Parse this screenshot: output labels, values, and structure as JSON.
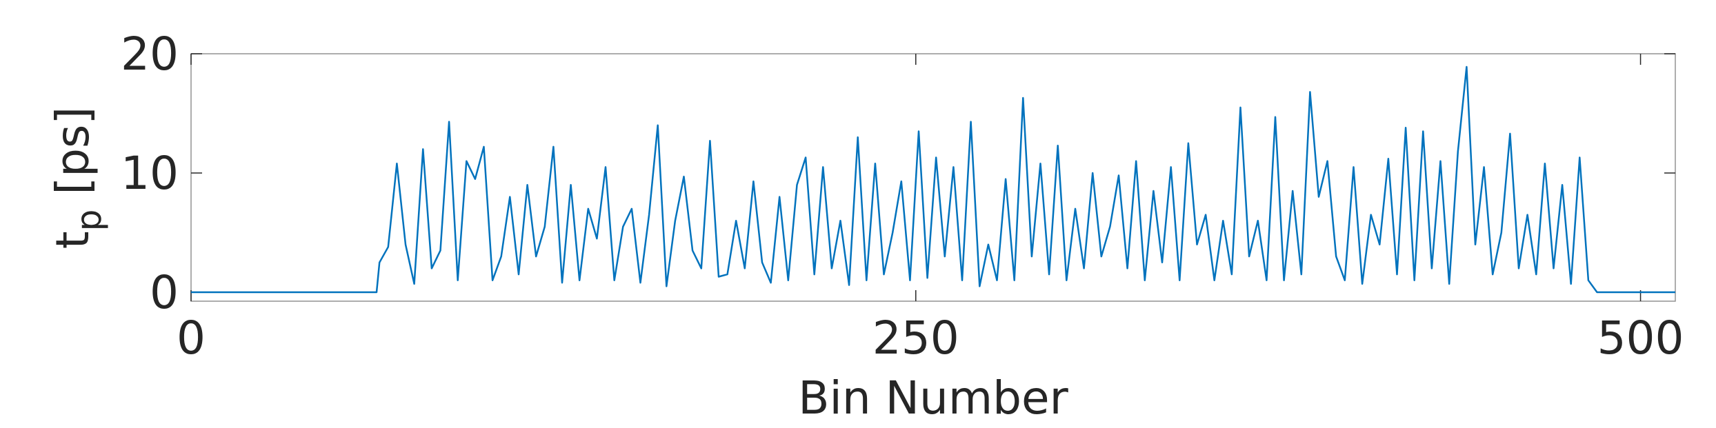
{
  "chart_data": {
    "type": "line",
    "xlabel": "Bin Number",
    "ylabel": [
      "t",
      "p",
      " [ps]"
    ],
    "xlim": [
      0,
      512
    ],
    "ylim": [
      -0.75,
      20
    ],
    "xticks": [
      0,
      250,
      500
    ],
    "yticks": [
      0,
      10,
      20
    ],
    "grid": false,
    "series": [
      {
        "color": "#0072bd",
        "x": [
          0,
          64,
          65,
          68,
          71,
          74,
          77,
          80,
          83,
          86,
          89,
          92,
          95,
          98,
          101,
          104,
          107,
          110,
          113,
          116,
          119,
          122,
          125,
          128,
          131,
          134,
          137,
          140,
          143,
          146,
          149,
          152,
          155,
          158,
          161,
          164,
          167,
          170,
          173,
          176,
          179,
          182,
          185,
          188,
          191,
          194,
          197,
          200,
          203,
          206,
          209,
          212,
          215,
          218,
          221,
          224,
          227,
          230,
          233,
          236,
          239,
          242,
          245,
          248,
          251,
          254,
          257,
          260,
          263,
          266,
          269,
          272,
          275,
          278,
          281,
          284,
          287,
          290,
          293,
          296,
          299,
          302,
          305,
          308,
          311,
          314,
          317,
          320,
          323,
          326,
          329,
          332,
          335,
          338,
          341,
          344,
          347,
          350,
          353,
          356,
          359,
          362,
          365,
          368,
          371,
          374,
          377,
          380,
          383,
          386,
          389,
          392,
          395,
          398,
          401,
          404,
          407,
          410,
          413,
          416,
          419,
          422,
          425,
          428,
          431,
          434,
          437,
          440,
          443,
          446,
          449,
          452,
          455,
          458,
          461,
          464,
          467,
          470,
          473,
          476,
          479,
          482,
          485,
          512
        ],
        "values": [
          0,
          0,
          2.5,
          3.8,
          10.8,
          4,
          0.7,
          12,
          2,
          3.5,
          14.3,
          1,
          11,
          9.5,
          12.2,
          1,
          3,
          8,
          1.5,
          9,
          3,
          5.5,
          12.2,
          0.8,
          9,
          1,
          7,
          4.5,
          10.5,
          1,
          5.5,
          7,
          0.8,
          6.5,
          14,
          0.5,
          6,
          9.7,
          3.5,
          2,
          12.7,
          1.3,
          1.5,
          6,
          2,
          9.3,
          2.5,
          0.8,
          8,
          1,
          9,
          11.3,
          1.5,
          10.5,
          2,
          6,
          0.6,
          13,
          1,
          10.8,
          1.5,
          5,
          9.3,
          1,
          13.5,
          1.2,
          11.3,
          3,
          10.5,
          1,
          14.3,
          0.5,
          4,
          1,
          9.5,
          1,
          16.3,
          3,
          10.8,
          1.5,
          12.3,
          1,
          7,
          2,
          10,
          3,
          5.5,
          9.8,
          2,
          11,
          1,
          8.5,
          2.5,
          10.5,
          1,
          12.5,
          4,
          6.5,
          1,
          6,
          1.5,
          15.5,
          3,
          6,
          1,
          14.7,
          1,
          8.5,
          1.5,
          16.8,
          8,
          11,
          3,
          1,
          10.5,
          0.7,
          6.5,
          4,
          11.2,
          1.5,
          13.8,
          1,
          13.5,
          2,
          11,
          0.7,
          11.8,
          18.9,
          4,
          10.5,
          1.5,
          5,
          13.3,
          2,
          6.5,
          1.5,
          10.8,
          2,
          9,
          0.7,
          11.3,
          1,
          0,
          0
        ]
      }
    ]
  }
}
